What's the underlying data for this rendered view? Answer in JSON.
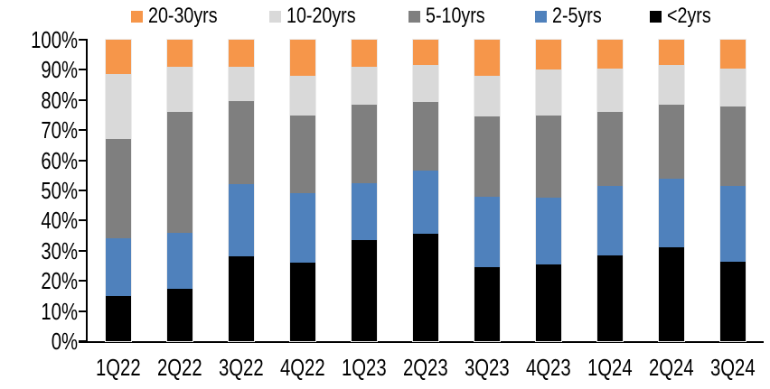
{
  "chart_data": {
    "type": "bar",
    "stacked": true,
    "percent_stacked": true,
    "title": "",
    "xlabel": "",
    "ylabel": "",
    "grid": false,
    "legend_position": "top",
    "legend_order": [
      "20-30yrs",
      "10-20yrs",
      "5-10yrs",
      "2-5yrs",
      "<2yrs"
    ],
    "ylim": [
      0,
      100
    ],
    "yticks": [
      "100%",
      "90%",
      "80%",
      "70%",
      "60%",
      "50%",
      "40%",
      "30%",
      "20%",
      "10%",
      "0%"
    ],
    "categories": [
      "1Q22",
      "2Q22",
      "3Q22",
      "4Q22",
      "1Q23",
      "2Q23",
      "3Q23",
      "4Q23",
      "1Q24",
      "2Q24",
      "3Q24"
    ],
    "series": [
      {
        "name": "<2yrs",
        "color": "#000000",
        "values": [
          15.0,
          17.5,
          28.0,
          26.0,
          33.5,
          35.5,
          24.5,
          25.5,
          28.5,
          31.0,
          26.5
        ]
      },
      {
        "name": "2-5yrs",
        "color": "#4F81BC",
        "values": [
          19.0,
          18.5,
          24.0,
          23.0,
          19.0,
          21.0,
          23.5,
          22.0,
          23.0,
          23.0,
          25.0
        ]
      },
      {
        "name": "5-10yrs",
        "color": "#7F7F7F",
        "values": [
          33.0,
          40.0,
          27.5,
          26.0,
          26.0,
          23.0,
          26.5,
          27.5,
          24.5,
          24.5,
          26.5
        ]
      },
      {
        "name": "10-20yrs",
        "color": "#D9D9D9",
        "values": [
          21.5,
          15.0,
          11.5,
          13.0,
          12.5,
          12.0,
          13.5,
          15.0,
          14.5,
          13.0,
          12.5
        ]
      },
      {
        "name": "20-30yrs",
        "color": "#F6964A",
        "values": [
          11.5,
          9.0,
          9.0,
          12.0,
          9.0,
          8.5,
          12.0,
          10.0,
          9.5,
          8.5,
          9.5
        ]
      }
    ],
    "axis_color": "#000000",
    "plot_geometry_note": "y axis 0-100% with ticks every 10%"
  }
}
